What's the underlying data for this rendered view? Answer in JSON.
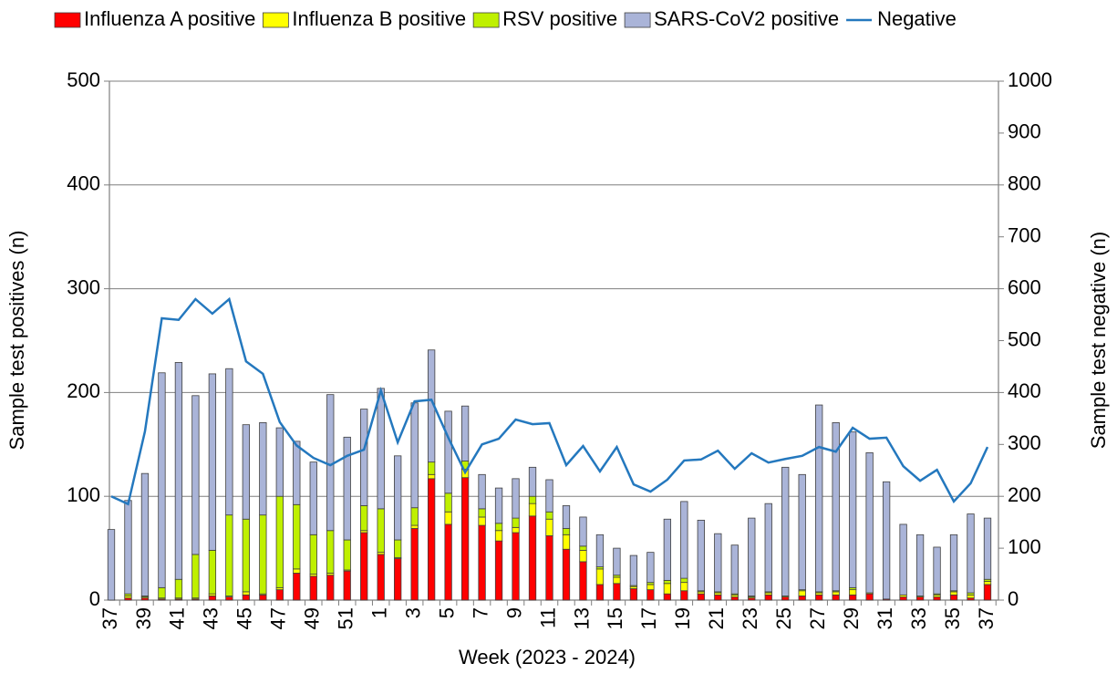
{
  "chart_data": {
    "type": "bar",
    "stacked": true,
    "x_label": "Week (2023 - 2024)",
    "y_label": "Sample test positives (n)",
    "y2_label": "Sample test negative (n)",
    "categories": [
      "37",
      null,
      "39",
      null,
      "41",
      null,
      "43",
      null,
      "45",
      null,
      "47",
      null,
      "49",
      null,
      "51",
      null,
      "1",
      null,
      "3",
      null,
      "5",
      null,
      "7",
      null,
      "9",
      null,
      "11",
      null,
      "13",
      null,
      "15",
      null,
      "17",
      null,
      "19",
      null,
      "21",
      null,
      "23",
      null,
      "25",
      null,
      "27",
      null,
      "29",
      null,
      "31",
      null,
      "33",
      null,
      "35",
      null,
      "37"
    ],
    "series": [
      {
        "name": "Influenza A positive",
        "type": "bar",
        "color": "#ff0000",
        "values": [
          0,
          2,
          2,
          1,
          1,
          1,
          4,
          3,
          5,
          5,
          10,
          26,
          23,
          24,
          28,
          65,
          44,
          40,
          69,
          117,
          73,
          118,
          72,
          57,
          65,
          81,
          62,
          49,
          37,
          15,
          16,
          11,
          10,
          6,
          9,
          6,
          5,
          3,
          2,
          5,
          3,
          4,
          5,
          5,
          5,
          6,
          1,
          3,
          3,
          3,
          5,
          2,
          15
        ]
      },
      {
        "name": "Influenza B positive",
        "type": "bar",
        "color": "#ffff00",
        "values": [
          0,
          2,
          1,
          1,
          1,
          1,
          2,
          1,
          3,
          1,
          2,
          4,
          2,
          2,
          1,
          2,
          2,
          1,
          3,
          4,
          12,
          8,
          8,
          10,
          5,
          12,
          16,
          14,
          11,
          15,
          6,
          2,
          5,
          10,
          8,
          2,
          2,
          2,
          1,
          2,
          1,
          5,
          2,
          3,
          5,
          1,
          0,
          2,
          1,
          2,
          3,
          3,
          3
        ]
      },
      {
        "name": "RSV positive",
        "type": "bar",
        "color": "#bff000",
        "values": [
          0,
          2,
          1,
          10,
          18,
          42,
          42,
          78,
          70,
          76,
          88,
          62,
          38,
          41,
          29,
          24,
          42,
          17,
          17,
          12,
          18,
          8,
          8,
          7,
          9,
          7,
          7,
          6,
          4,
          2,
          2,
          1,
          2,
          3,
          4,
          1,
          1,
          1,
          1,
          1,
          0,
          1,
          1,
          1,
          2,
          0,
          0,
          0,
          0,
          1,
          1,
          2,
          2
        ]
      },
      {
        "name": "SARS-CoV2 positive",
        "type": "bar",
        "color": "#aab4d8",
        "values": [
          68,
          90,
          118,
          207,
          209,
          153,
          170,
          141,
          91,
          89,
          66,
          61,
          70,
          131,
          99,
          93,
          116,
          81,
          101,
          108,
          79,
          53,
          33,
          34,
          38,
          28,
          31,
          22,
          28,
          31,
          26,
          29,
          29,
          59,
          74,
          68,
          56,
          47,
          75,
          85,
          124,
          111,
          180,
          162,
          150,
          135,
          113,
          68,
          59,
          45,
          54,
          76,
          59
        ]
      },
      {
        "name": "Negative",
        "type": "line",
        "axis": "y2",
        "color": "#2478be",
        "values": [
          200,
          185,
          325,
          543,
          540,
          580,
          552,
          580,
          460,
          436,
          343,
          298,
          274,
          260,
          278,
          290,
          404,
          304,
          383,
          386,
          313,
          246,
          300,
          311,
          348,
          339,
          341,
          260,
          297,
          248,
          295,
          223,
          209,
          232,
          269,
          271,
          288,
          253,
          283,
          265,
          272,
          278,
          295,
          286,
          332,
          311,
          313,
          258,
          230,
          251,
          190,
          225,
          295
        ]
      }
    ],
    "ylim": [
      0,
      500
    ],
    "yticks": [
      0,
      100,
      200,
      300,
      400,
      500
    ],
    "y2lim": [
      0,
      1000
    ],
    "y2ticks": [
      0,
      100,
      200,
      300,
      400,
      500,
      600,
      700,
      800,
      900,
      1000
    ],
    "grid": true,
    "legend": "top"
  }
}
